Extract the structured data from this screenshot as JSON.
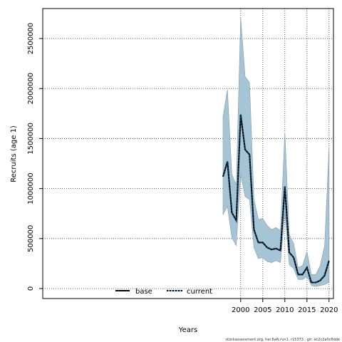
{
  "chart_data": {
    "type": "area",
    "xlabel": "Years",
    "ylabel": "Recruits (age 1)",
    "xlim": [
      1955.2,
      2021.0
    ],
    "ylim": [
      -100000,
      2800000
    ],
    "grid": true,
    "legend_position": "bottom-center",
    "x_ticks": [
      2000,
      2005,
      2010,
      2015,
      2020
    ],
    "y_ticks": [
      0,
      500000,
      1000000,
      1500000,
      2000000,
      2500000
    ],
    "x": [
      1996,
      1997,
      1998,
      1999,
      2000,
      2001,
      2002,
      2003,
      2004,
      2005,
      2006,
      2007,
      2008,
      2009,
      2010,
      2011,
      2012,
      2013,
      2014,
      2015,
      2016,
      2017,
      2018,
      2019,
      2020
    ],
    "band": {
      "color": "#a5c4d6",
      "edge_color": "#8a9ba6",
      "upper": [
        1720000,
        1990000,
        1140000,
        1040000,
        2710000,
        2120000,
        2060000,
        900000,
        690000,
        700000,
        630000,
        590000,
        610000,
        580000,
        1560000,
        540000,
        450000,
        210000,
        230000,
        370000,
        140000,
        140000,
        230000,
        430000,
        1410000
      ],
      "lower": [
        740000,
        820000,
        510000,
        430000,
        1140000,
        920000,
        890000,
        410000,
        300000,
        310000,
        270000,
        260000,
        280000,
        260000,
        750000,
        240000,
        200000,
        90000,
        90000,
        120000,
        30000,
        20000,
        30000,
        40000,
        60000
      ]
    },
    "series": [
      {
        "name": "base",
        "color": "#000000",
        "style": "solid",
        "values": [
          1120000,
          1270000,
          760000,
          680000,
          1740000,
          1390000,
          1340000,
          590000,
          460000,
          460000,
          410000,
          390000,
          400000,
          380000,
          1020000,
          360000,
          310000,
          140000,
          140000,
          210000,
          60000,
          60000,
          80000,
          130000,
          280000
        ]
      },
      {
        "name": "current",
        "color": "#0b6ea8",
        "style": "dotted",
        "values": [
          1120000,
          1270000,
          760000,
          680000,
          1740000,
          1390000,
          1340000,
          590000,
          460000,
          460000,
          410000,
          390000,
          400000,
          380000,
          1020000,
          360000,
          310000,
          140000,
          140000,
          210000,
          60000,
          60000,
          80000,
          130000,
          280000
        ]
      }
    ],
    "footer_text": "stockassessment.org, her.6aN.run1, r15373 , git: ec2c2a0c6dde"
  }
}
